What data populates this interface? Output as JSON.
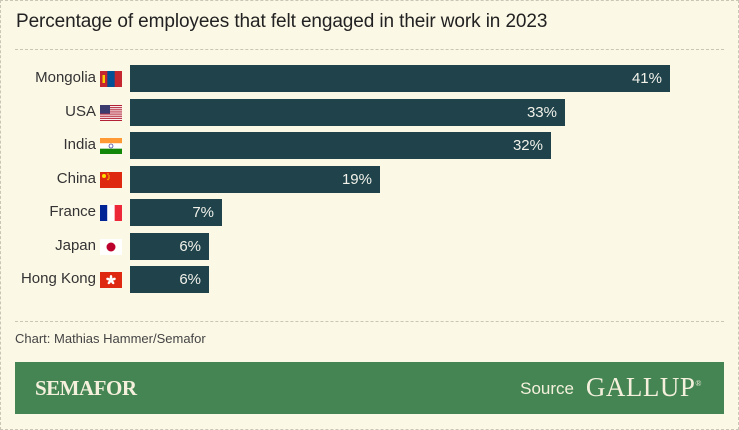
{
  "chart_data": {
    "type": "bar",
    "orientation": "horizontal",
    "title": "Percentage of employees that felt engaged in their work in 2023",
    "categories": [
      "Mongolia",
      "USA",
      "India",
      "China",
      "France",
      "Japan",
      "Hong Kong"
    ],
    "values": [
      41,
      33,
      32,
      19,
      7,
      6,
      6
    ],
    "data_labels": [
      "41%",
      "33%",
      "32%",
      "19%",
      "7%",
      "6%",
      "6%"
    ],
    "flags": [
      "mongolia-flag",
      "usa-flag",
      "india-flag",
      "china-flag",
      "france-flag",
      "japan-flag",
      "hong-kong-flag"
    ],
    "xlabel": "",
    "ylabel": "",
    "xlim": [
      0,
      41
    ],
    "unit": "%",
    "bar_color": "#1f424b",
    "grid": false
  },
  "credit": "Chart: Mathias Hammer/Semafor",
  "footer": {
    "brand": "SEMAFOR",
    "source_label": "Source",
    "source_name": "GALLUP",
    "source_mark": "®",
    "color": "#448553"
  },
  "colors": {
    "background": "#fcf8e6",
    "bar": "#1f424b",
    "footer": "#448553"
  }
}
